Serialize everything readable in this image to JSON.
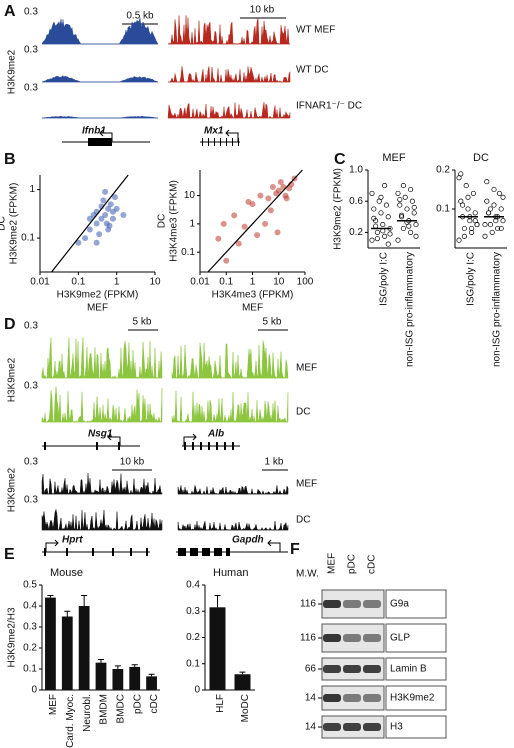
{
  "panel_a": {
    "letter": "A",
    "y_label": "H3K9me2",
    "max_labels": [
      "0.3",
      "0.3",
      "0.3"
    ],
    "scale_bars": [
      "0.5 kb",
      "10 kb"
    ],
    "samples": [
      "WT MEF",
      "WT DC",
      "IFNAR1⁻/⁻ DC"
    ],
    "genes": [
      "Ifnb1",
      "Mx1"
    ]
  },
  "panel_b": {
    "letter": "B"
  },
  "panel_c": {
    "letter": "C"
  },
  "panel_d": {
    "letter": "D",
    "y_labels": [
      "H3K9me2",
      "H3K9me2"
    ],
    "max_labels": [
      "0.3",
      "0.3",
      "0.3",
      "0.3"
    ],
    "scale_bars": [
      "5 kb",
      "5 kb",
      "10 kb",
      "1 kb"
    ],
    "samples": [
      "MEF",
      "DC",
      "MEF",
      "DC"
    ],
    "genes": [
      "Nsg1",
      "Alb",
      "Hprt",
      "Gapdh"
    ]
  },
  "panel_e": {
    "letter": "E"
  },
  "panel_f": {
    "letter": "F",
    "mw_header": "M.W.",
    "lanes": [
      "MEF",
      "pDC",
      "cDC"
    ],
    "rows": [
      {
        "mw": "116",
        "name": "G9a"
      },
      {
        "mw": "116",
        "name": "GLP"
      },
      {
        "mw": "66",
        "name": "Lamin B"
      },
      {
        "mw": "14",
        "name": "H3K9me2"
      },
      {
        "mw": "14",
        "name": "H3"
      }
    ]
  },
  "chart_data": [
    {
      "type": "scatter",
      "log": true,
      "color": "#3a5bb0",
      "x_label": "H3K9me2 (FPKM)",
      "x_sample": "MEF",
      "y_label": "H3K9me2 (FPKM)",
      "y_sample": "DC",
      "xlim": [
        0.01,
        10
      ],
      "xticks": [
        0.01,
        0.1,
        1,
        10
      ],
      "ylim": [
        0.02,
        2
      ],
      "yticks": [
        0.1,
        1
      ],
      "x": [
        0.3,
        0.5,
        0.2,
        0.8,
        0.4,
        0.6,
        0.25,
        0.35,
        0.7,
        1.0,
        0.15,
        0.45,
        0.3,
        0.55,
        0.9,
        0.2,
        0.4,
        0.65,
        1.5,
        0.1,
        0.5,
        0.3,
        0.8,
        0.6
      ],
      "values": [
        0.2,
        0.3,
        0.15,
        0.35,
        0.25,
        0.4,
        0.3,
        0.12,
        0.5,
        0.4,
        0.1,
        0.6,
        0.08,
        0.2,
        0.7,
        0.25,
        0.45,
        0.18,
        0.3,
        0.08,
        0.9,
        0.35,
        0.25,
        0.15
      ]
    },
    {
      "type": "scatter",
      "log": true,
      "color": "#c0392b",
      "x_label": "H3K4me3 (FPKM)",
      "x_sample": "MEF",
      "y_label": "H3K4me3 (FPKM)",
      "y_sample": "DC",
      "xlim": [
        0.01,
        100
      ],
      "xticks": [
        0.01,
        0.1,
        1,
        10,
        100
      ],
      "ylim": [
        0.02,
        80
      ],
      "yticks": [
        0.1,
        1,
        10
      ],
      "x": [
        0.05,
        0.1,
        0.2,
        0.5,
        1,
        2,
        5,
        10,
        15,
        20,
        30,
        8,
        3,
        0.3,
        0.08,
        1.5,
        12,
        25,
        40,
        6,
        0.7,
        4,
        18,
        9
      ],
      "values": [
        0.3,
        0.05,
        2,
        0.8,
        5,
        10,
        3,
        15,
        20,
        8,
        25,
        12,
        1,
        0.2,
        1,
        0.4,
        30,
        18,
        40,
        20,
        6,
        8,
        10,
        0.5
      ]
    },
    {
      "type": "strip",
      "title": "MEF",
      "y_label": "H3K9me2 (FPKM)",
      "categories": [
        "ISG/poly I:C",
        "non-ISG pro-inflammatory"
      ],
      "ylim": [
        0,
        1
      ],
      "yticks": [
        0.2,
        0.6,
        {
          "value": 1,
          "label": "1.0"
        }
      ],
      "points": [
        [
          0.1,
          0.15,
          0.2,
          0.25,
          0.3,
          0.35,
          0.4,
          0.45,
          0.5,
          0.55,
          0.6,
          0.7,
          0.8,
          0.12,
          0.18,
          0.22,
          0.28,
          0.05,
          0.65,
          0.38
        ],
        [
          0.1,
          0.2,
          0.25,
          0.3,
          0.35,
          0.4,
          0.45,
          0.5,
          0.55,
          0.6,
          0.65,
          0.7,
          0.75,
          0.8,
          0.15,
          0.28,
          0.42,
          0.52,
          0.33,
          0.62
        ]
      ],
      "means": [
        0.25,
        0.35
      ]
    },
    {
      "type": "strip",
      "title": "DC",
      "categories": [
        "ISG/poly I:C",
        "non-ISG pro-inflammatory"
      ],
      "ylim": [
        0,
        0.2
      ],
      "yticks": [
        0.1,
        0.2
      ],
      "points": [
        [
          0.02,
          0.04,
          0.05,
          0.06,
          0.07,
          0.08,
          0.09,
          0.1,
          0.12,
          0.14,
          0.16,
          0.18,
          0.05,
          0.03,
          0.06,
          0.08,
          0.11,
          0.07,
          0.13,
          0.19
        ],
        [
          0.03,
          0.05,
          0.06,
          0.07,
          0.08,
          0.09,
          0.1,
          0.11,
          0.12,
          0.14,
          0.04,
          0.06,
          0.08,
          0.1,
          0.13,
          0.07,
          0.09,
          0.05,
          0.15,
          0.17
        ]
      ],
      "means": [
        0.08,
        0.08
      ]
    },
    {
      "type": "bar",
      "title": "Mouse",
      "y_label": "H3K9me2/H3",
      "color": "#111111",
      "categories": [
        "MEF",
        "Card. Myoc.",
        "Neurobl.",
        "BMDM",
        "BMDC",
        "pDC",
        "cDC"
      ],
      "values": [
        0.44,
        0.35,
        0.4,
        0.13,
        0.1,
        0.11,
        0.065
      ],
      "errors": [
        0.01,
        0.025,
        0.05,
        0.015,
        0.015,
        0.01,
        0.01
      ],
      "ylim": [
        0,
        0.5
      ],
      "yticks": [
        0,
        0.1,
        0.2,
        0.3,
        0.4,
        0.5
      ]
    },
    {
      "type": "bar",
      "title": "Human",
      "color": "#111111",
      "categories": [
        "HLF",
        "MoDC"
      ],
      "values": [
        0.315,
        0.06
      ],
      "errors": [
        0.045,
        0.008
      ],
      "ylim": [
        0,
        0.4
      ],
      "yticks": [
        0,
        0.1,
        0.2,
        0.3,
        0.4
      ]
    }
  ]
}
